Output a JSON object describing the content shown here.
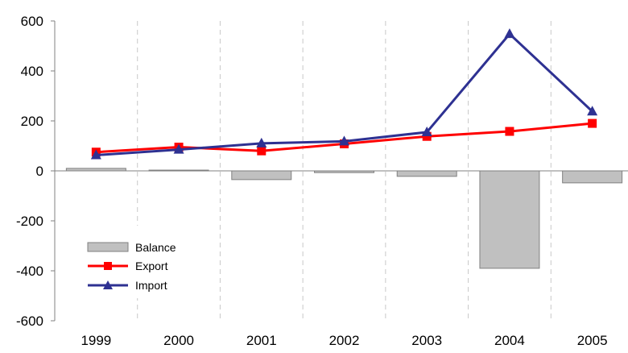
{
  "chart_data": {
    "type": "bar",
    "categories": [
      "1999",
      "2000",
      "2001",
      "2002",
      "2003",
      "2004",
      "2005"
    ],
    "ylim": [
      -600,
      600
    ],
    "yticks": [
      600,
      400,
      200,
      0,
      -200,
      -400,
      -600
    ],
    "grid": {
      "vertical": "dashed",
      "horizontal": false
    },
    "legend_position": "bottom-left",
    "series": [
      {
        "name": "Balance",
        "kind": "bar",
        "color": "#c0c0c0",
        "values": [
          10,
          3,
          -35,
          -7,
          -22,
          -390,
          -48
        ]
      },
      {
        "name": "Export",
        "kind": "line",
        "marker": "square",
        "color": "#ff0000",
        "values": [
          75,
          95,
          80,
          108,
          138,
          158,
          190
        ]
      },
      {
        "name": "Import",
        "kind": "line",
        "marker": "triangle",
        "color": "#2e3192",
        "values": [
          63,
          85,
          110,
          118,
          155,
          548,
          238
        ]
      }
    ]
  }
}
